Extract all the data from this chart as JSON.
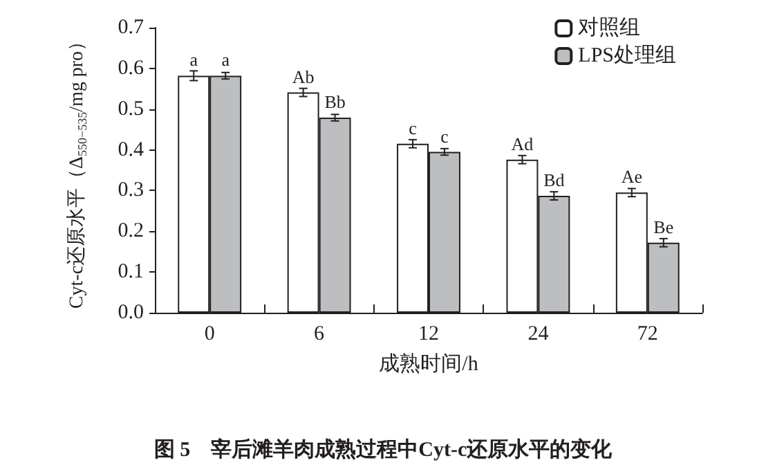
{
  "chart_data": {
    "type": "bar",
    "title": "图 5    宰后滩羊肉成熟过程中Cyt-c还原水平的变化",
    "xlabel": "成熟时间/h",
    "ylabel": "Cyt-c还原水平（Δ$_{550−535}$/mg pro）",
    "categories": [
      "0",
      "6",
      "12",
      "24",
      "72"
    ],
    "series": [
      {
        "name": "对照组",
        "color": "#ffffff",
        "values": [
          0.582,
          0.541,
          0.415,
          0.376,
          0.295
        ],
        "errors": [
          0.012,
          0.01,
          0.01,
          0.01,
          0.01
        ],
        "value_labels": [
          "a",
          "Ab",
          "c",
          "Ad",
          "Ae"
        ]
      },
      {
        "name": "LPS处理组",
        "color": "#bcbec0",
        "values": [
          0.582,
          0.479,
          0.395,
          0.287,
          0.172
        ],
        "errors": [
          0.008,
          0.008,
          0.008,
          0.01,
          0.01
        ],
        "value_labels": [
          "a",
          "Bb",
          "c",
          "Bd",
          "Be"
        ]
      }
    ],
    "ylim": [
      0,
      0.7
    ],
    "yticks": [
      {
        "value": 0,
        "label": "0.0"
      },
      {
        "value": 0.1,
        "label": "0.1"
      },
      {
        "value": 0.2,
        "label": "0.2"
      },
      {
        "value": 0.3,
        "label": "0.3"
      },
      {
        "value": 0.4,
        "label": "0.4"
      },
      {
        "value": 0.5,
        "label": "0.5"
      },
      {
        "value": 0.6,
        "label": "0.6"
      },
      {
        "value": 0.7,
        "label": "0.7"
      }
    ],
    "grid": false,
    "legend": "top right"
  }
}
